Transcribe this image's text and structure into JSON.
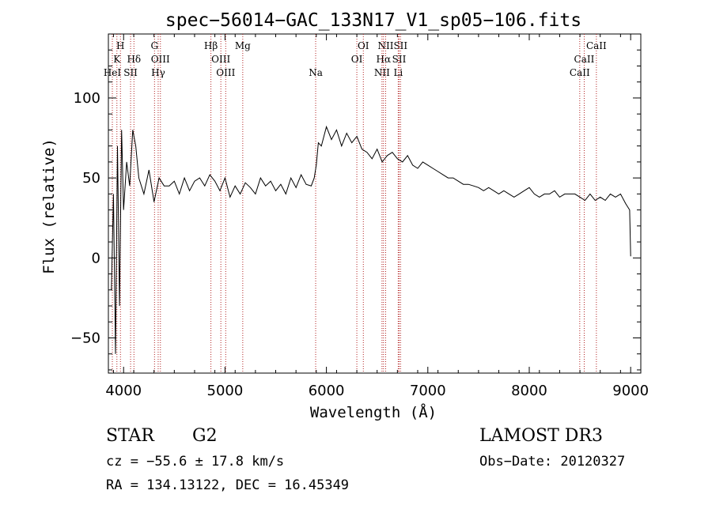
{
  "chart_data": {
    "type": "line",
    "title": "spec−56014−GAC_133N17_V1_sp05−106.fits",
    "xlabel": "Wavelength (Å)",
    "ylabel": "Flux (relative)",
    "xlim": [
      3850,
      9100
    ],
    "ylim": [
      -72,
      140
    ],
    "grid": false,
    "x_ticks": [
      4000,
      5000,
      6000,
      7000,
      8000,
      9000
    ],
    "x_tick_labels": [
      "4000",
      "5000",
      "6000",
      "7000",
      "8000",
      "9000"
    ],
    "y_ticks": [
      -50,
      0,
      50,
      100
    ],
    "y_tick_labels": [
      "−50",
      "0",
      "50",
      "100"
    ],
    "series": [
      {
        "name": "flux",
        "x": [
          3880,
          3900,
          3920,
          3940,
          3960,
          3980,
          4000,
          4030,
          4060,
          4090,
          4120,
          4150,
          4200,
          4250,
          4300,
          4350,
          4400,
          4450,
          4500,
          4550,
          4600,
          4650,
          4700,
          4750,
          4800,
          4850,
          4900,
          4950,
          5000,
          5050,
          5100,
          5150,
          5200,
          5250,
          5300,
          5350,
          5400,
          5450,
          5500,
          5550,
          5600,
          5650,
          5700,
          5750,
          5800,
          5850,
          5880,
          5900,
          5920,
          5950,
          6000,
          6050,
          6100,
          6150,
          6200,
          6250,
          6300,
          6350,
          6400,
          6450,
          6500,
          6550,
          6600,
          6650,
          6700,
          6750,
          6800,
          6850,
          6900,
          6950,
          7000,
          7050,
          7100,
          7150,
          7200,
          7250,
          7300,
          7350,
          7400,
          7450,
          7500,
          7550,
          7600,
          7650,
          7700,
          7750,
          7800,
          7850,
          7900,
          7950,
          8000,
          8050,
          8100,
          8150,
          8200,
          8250,
          8300,
          8350,
          8400,
          8450,
          8500,
          8550,
          8600,
          8650,
          8700,
          8750,
          8800,
          8850,
          8900,
          8950,
          8990,
          9000
        ],
        "y": [
          -20,
          40,
          -60,
          70,
          -30,
          80,
          30,
          60,
          45,
          80,
          70,
          50,
          40,
          55,
          35,
          50,
          45,
          45,
          48,
          40,
          50,
          42,
          48,
          50,
          45,
          52,
          48,
          42,
          50,
          38,
          45,
          40,
          47,
          44,
          40,
          50,
          45,
          48,
          42,
          46,
          40,
          50,
          44,
          52,
          46,
          45,
          50,
          58,
          72,
          70,
          82,
          74,
          80,
          70,
          78,
          72,
          76,
          68,
          66,
          62,
          68,
          60,
          64,
          66,
          62,
          60,
          64,
          58,
          56,
          60,
          58,
          56,
          54,
          52,
          50,
          50,
          48,
          46,
          46,
          45,
          44,
          42,
          44,
          42,
          40,
          42,
          40,
          38,
          40,
          42,
          44,
          40,
          38,
          40,
          40,
          42,
          38,
          40,
          40,
          40,
          38,
          36,
          40,
          36,
          38,
          36,
          40,
          38,
          40,
          34,
          30,
          1
        ]
      }
    ],
    "spectral_lines": [
      {
        "label": "H",
        "x": 3969,
        "row": 0
      },
      {
        "label": "K",
        "x": 3934,
        "row": 1
      },
      {
        "label": "HeI",
        "x": 3889,
        "row": 2
      },
      {
        "label": "Hδ",
        "x": 4102,
        "row": 1
      },
      {
        "label": "SII",
        "x": 4069,
        "row": 2
      },
      {
        "label": "G",
        "x": 4305,
        "row": 0
      },
      {
        "label": "OIII",
        "x": 4363,
        "row": 1
      },
      {
        "label": "Hγ",
        "x": 4341,
        "row": 2
      },
      {
        "label": "Hβ",
        "x": 4861,
        "row": 0
      },
      {
        "label": "OIII",
        "x": 4959,
        "row": 1
      },
      {
        "label": "OIII",
        "x": 5007,
        "row": 2
      },
      {
        "label": "Mg",
        "x": 5175,
        "row": 0
      },
      {
        "label": "Na",
        "x": 5894,
        "row": 2
      },
      {
        "label": "OI",
        "x": 6364,
        "row": 0
      },
      {
        "label": "OI",
        "x": 6300,
        "row": 1
      },
      {
        "label": "NII",
        "x": 6584,
        "row": 0
      },
      {
        "label": "Hα",
        "x": 6563,
        "row": 1
      },
      {
        "label": "NII",
        "x": 6548,
        "row": 2
      },
      {
        "label": "SII",
        "x": 6731,
        "row": 0
      },
      {
        "label": "SII",
        "x": 6717,
        "row": 1
      },
      {
        "label": "Li",
        "x": 6708,
        "row": 2
      },
      {
        "label": "CaII",
        "x": 8662,
        "row": 0
      },
      {
        "label": "CaII",
        "x": 8542,
        "row": 1
      },
      {
        "label": "CaII",
        "x": 8498,
        "row": 2
      }
    ],
    "line_color": "#b22222"
  },
  "info": {
    "object_class": "STAR",
    "subclass": "G2",
    "survey": "LAMOST DR3",
    "cz": "cz = −55.6 ± 17.8 km/s",
    "obs_date": "Obs−Date: 20120327",
    "coords": "RA = 134.13122, DEC =  16.45349"
  }
}
